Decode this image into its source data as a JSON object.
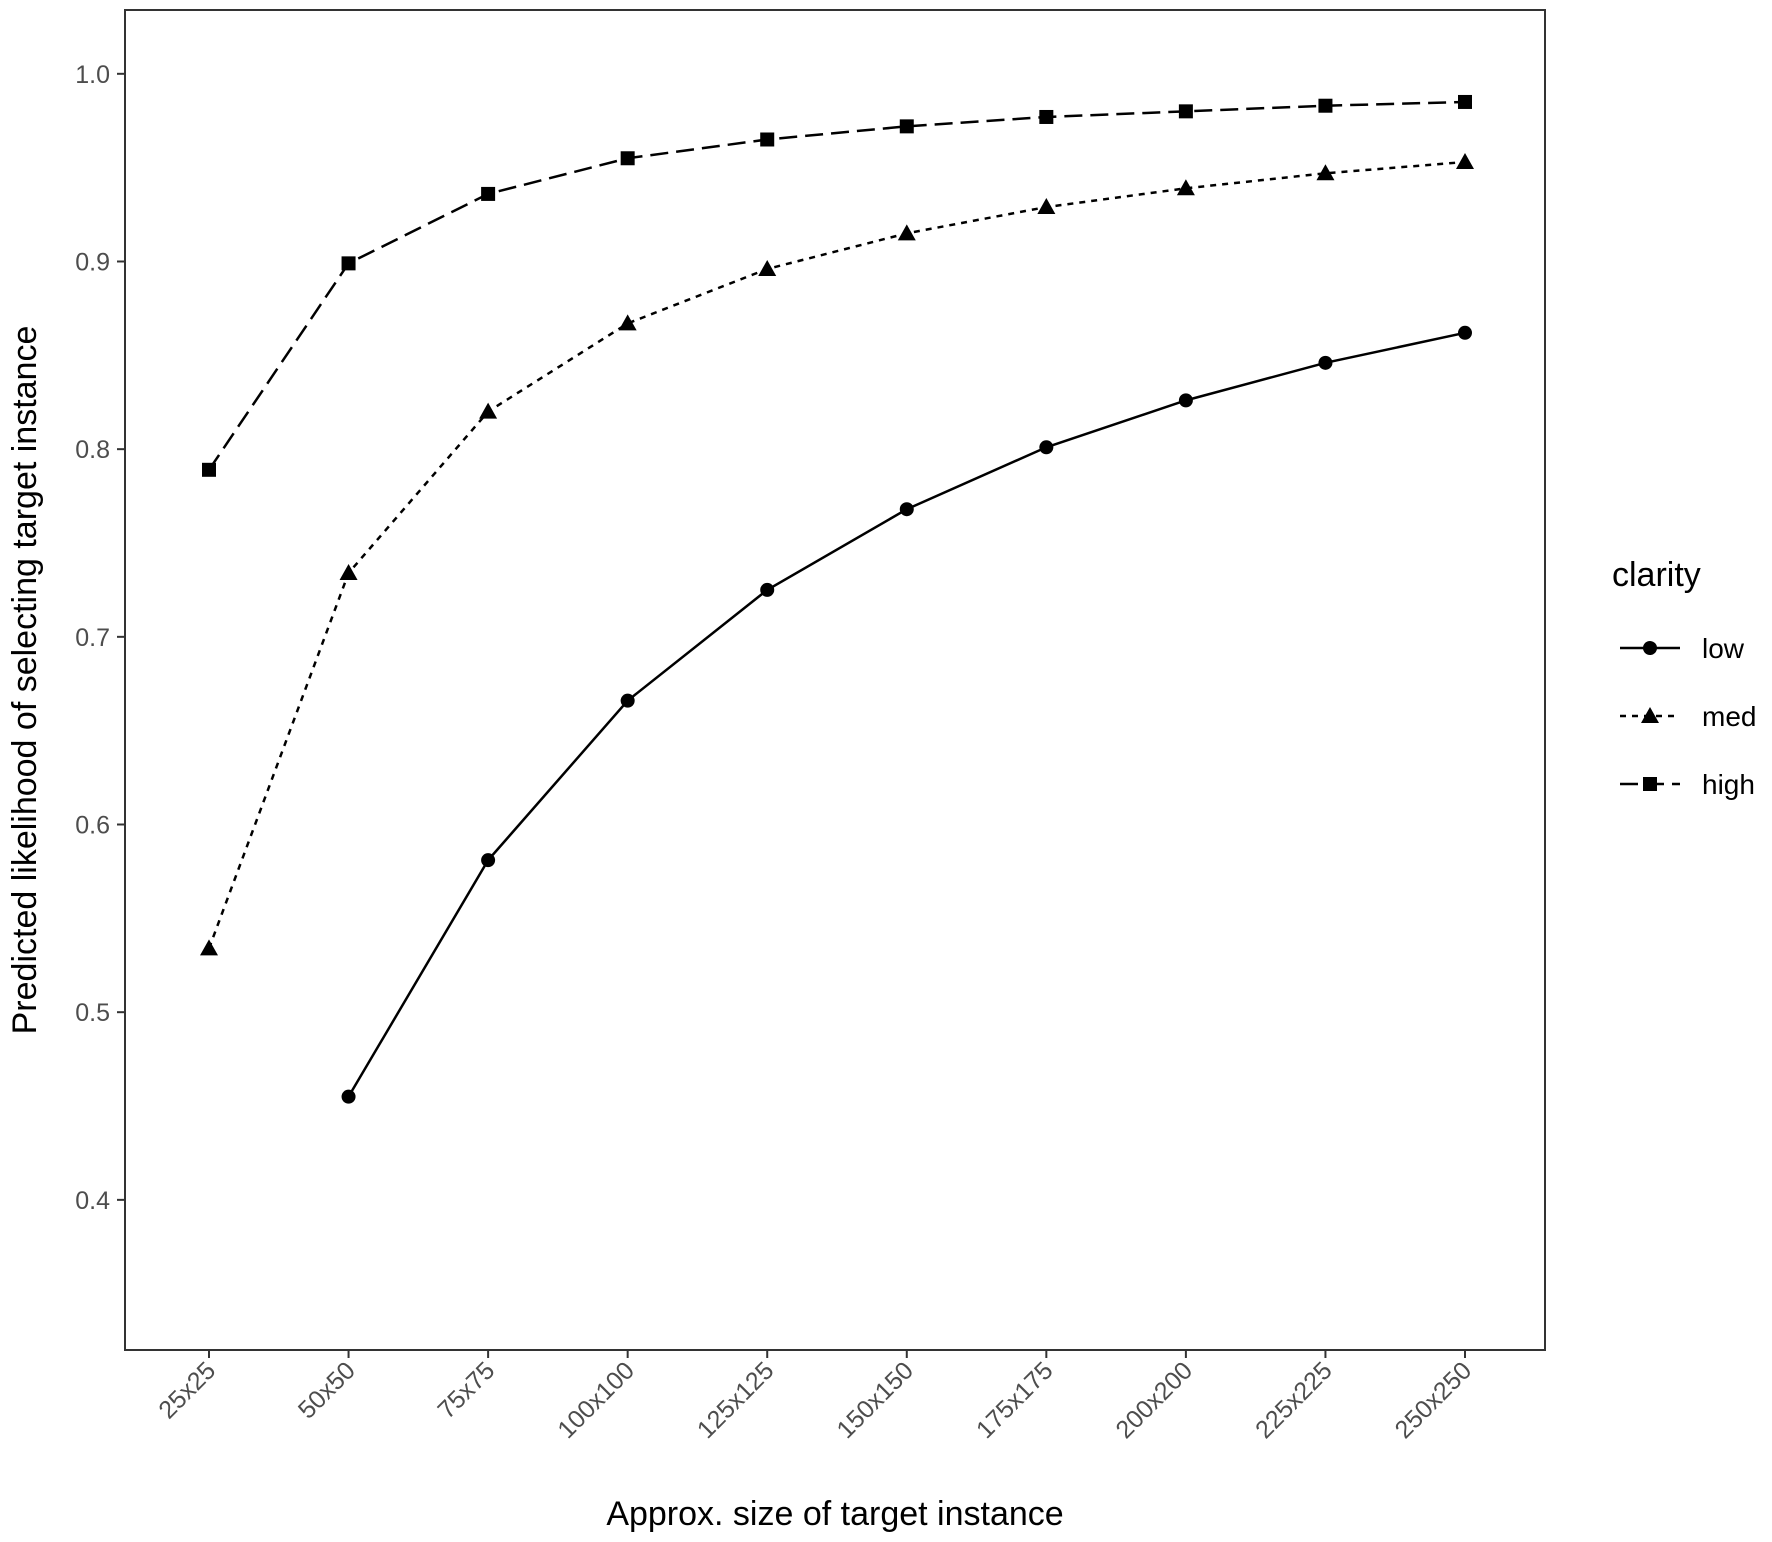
{
  "chart_data": {
    "type": "line",
    "xlabel": "Approx. size of target instance",
    "ylabel": "Predicted likelihood of selecting target instance",
    "categories": [
      "25x25",
      "50x50",
      "75x75",
      "100x100",
      "125x125",
      "150x150",
      "175x175",
      "200x200",
      "225x225",
      "250x250"
    ],
    "yticks": [
      "0.4",
      "0.5",
      "0.6",
      "0.7",
      "0.8",
      "0.9",
      "1.0"
    ],
    "ylim": [
      0.32,
      1.034
    ],
    "grid": false,
    "legend": {
      "title": "clarity",
      "position": "right"
    },
    "series": [
      {
        "name": "low",
        "marker": "circle",
        "dash": "solid",
        "values": [
          null,
          0.455,
          0.581,
          0.666,
          0.725,
          0.768,
          0.801,
          0.826,
          0.846,
          0.862
        ]
      },
      {
        "name": "med",
        "marker": "triangle",
        "dash": "dotted",
        "values": [
          0.534,
          0.734,
          0.82,
          0.867,
          0.896,
          0.915,
          0.929,
          0.939,
          0.947,
          0.953
        ]
      },
      {
        "name": "high",
        "marker": "square",
        "dash": "dashed",
        "values": [
          0.789,
          0.899,
          0.936,
          0.955,
          0.965,
          0.972,
          0.977,
          0.98,
          0.983,
          0.985
        ]
      }
    ]
  }
}
